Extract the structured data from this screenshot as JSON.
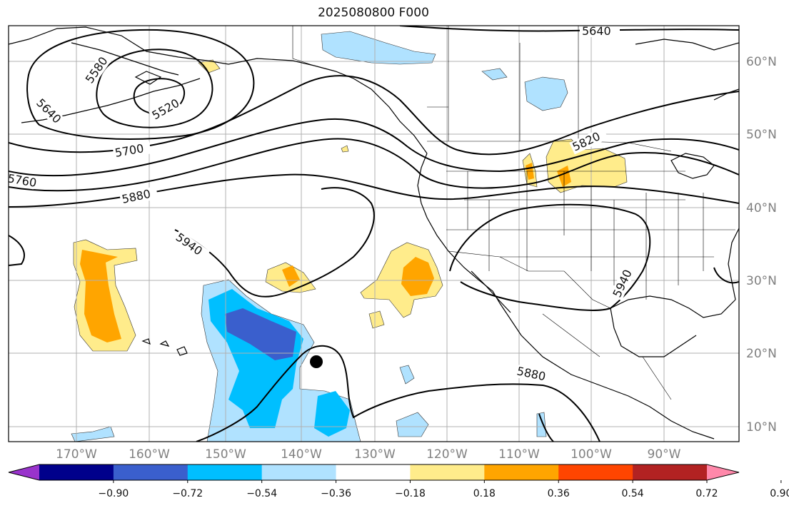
{
  "title": "2025080800 F000",
  "lon_ticks": [
    "170°W",
    "160°W",
    "150°W",
    "140°W",
    "130°W",
    "120°W",
    "110°W",
    "100°W",
    "90°W"
  ],
  "lat_ticks": [
    "60°N",
    "50°N",
    "40°N",
    "30°N",
    "20°N",
    "10°N"
  ],
  "contour_labels": [
    "5640",
    "5580",
    "5520",
    "5640",
    "5700",
    "5760",
    "5820",
    "5880",
    "5940",
    "5940",
    "5880"
  ],
  "colorbar": {
    "ticks": [
      "−0.90",
      "−0.72",
      "−0.54",
      "−0.36",
      "−0.18",
      "0.18",
      "0.36",
      "0.54",
      "0.72",
      "0.90"
    ],
    "colors": [
      "#9933cc",
      "#00008b",
      "#3a5fcd",
      "#00bfff",
      "#b0e2ff",
      "#ffffff",
      "#ffec8b",
      "#ffa500",
      "#ff4500",
      "#b22222",
      "#ff88aa"
    ]
  }
}
